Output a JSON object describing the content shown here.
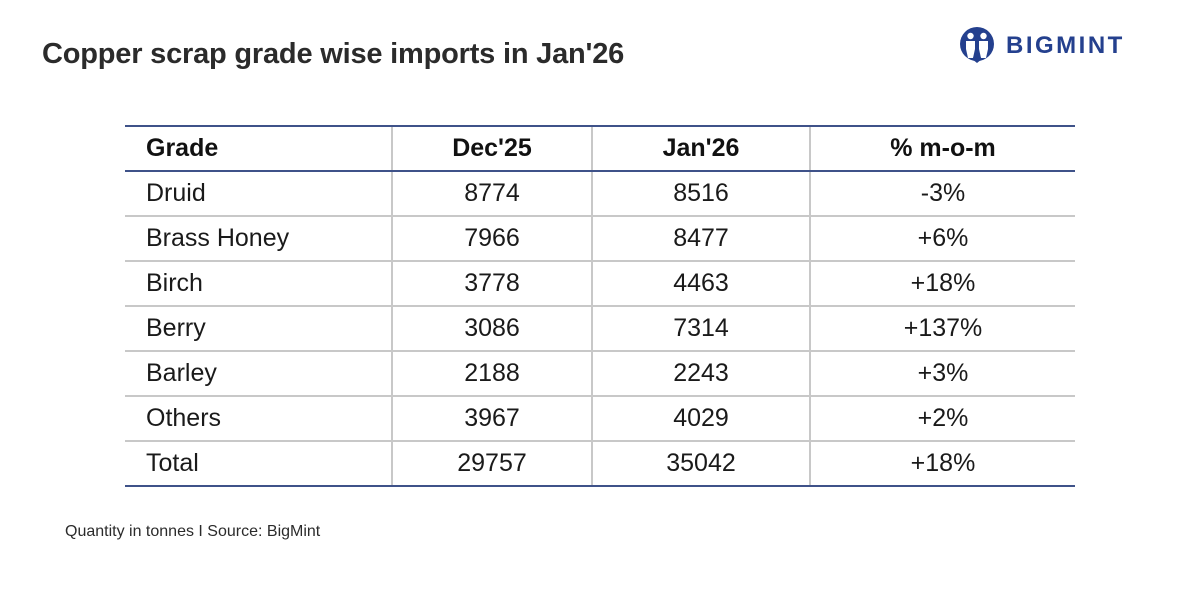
{
  "title": "Copper scrap grade wise imports in Jan'26",
  "logo": {
    "text": "BIGMINT",
    "icon": "bigmint-logo-icon",
    "color": "#24408e"
  },
  "colors": {
    "negative": "#e0201b",
    "positive": "#1aa34a",
    "rule": "#3f5289"
  },
  "footnote": "Quantity in tonnes  I  Source: BigMint",
  "chart_data": {
    "type": "table",
    "title": "Copper scrap grade wise imports in Jan'26",
    "columns": [
      "Grade",
      "Dec'25",
      "Jan'26",
      "% m-o-m"
    ],
    "rows": [
      {
        "grade": "Druid",
        "dec25": "8774",
        "jan26": "8516",
        "mom": "-3%",
        "trend": "neg"
      },
      {
        "grade": "Brass Honey",
        "dec25": "7966",
        "jan26": "8477",
        "mom": "+6%",
        "trend": "pos"
      },
      {
        "grade": "Birch",
        "dec25": "3778",
        "jan26": "4463",
        "mom": "+18%",
        "trend": "pos"
      },
      {
        "grade": "Berry",
        "dec25": "3086",
        "jan26": "7314",
        "mom": "+137%",
        "trend": "pos"
      },
      {
        "grade": "Barley",
        "dec25": "2188",
        "jan26": "2243",
        "mom": "+3%",
        "trend": "pos"
      },
      {
        "grade": "Others",
        "dec25": "3967",
        "jan26": "4029",
        "mom": "+2%",
        "trend": "pos"
      },
      {
        "grade": "Total",
        "dec25": "29757",
        "jan26": "35042",
        "mom": "+18%",
        "trend": "pos"
      }
    ]
  }
}
